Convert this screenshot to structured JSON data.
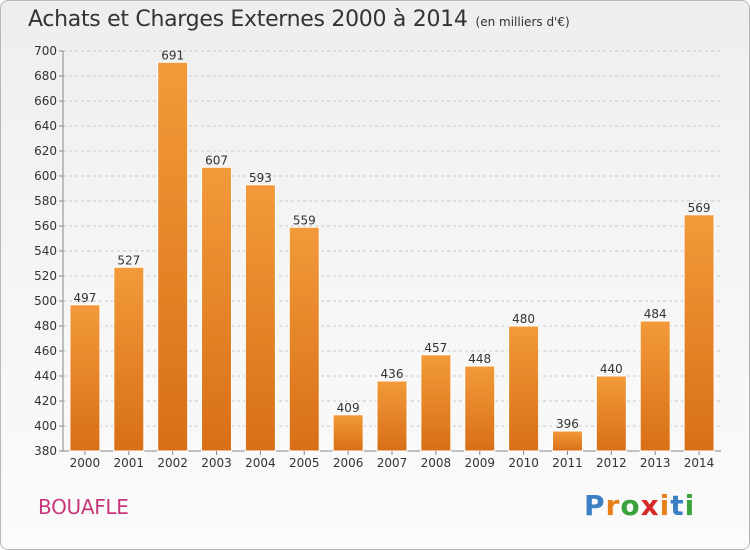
{
  "title": "Achats et Charges Externes 2000 à 2014",
  "subtitle": "(en milliers d'€)",
  "commune": "BOUAFLE",
  "brand": {
    "letters": [
      "P",
      "r",
      "o",
      "x",
      "i",
      "t",
      "i"
    ],
    "colors": [
      "#3b7fc4",
      "#e8801a",
      "#3aa23a",
      "#d42a2a",
      "#e8801a",
      "#3b7fc4",
      "#3aa23a"
    ]
  },
  "colors": {
    "bar": "#f29a3a",
    "bar_dark": "#d86f16",
    "grid": "#c9c9c9",
    "text": "#333333"
  },
  "chart_data": {
    "type": "bar",
    "categories": [
      "2000",
      "2001",
      "2002",
      "2003",
      "2004",
      "2005",
      "2006",
      "2007",
      "2008",
      "2009",
      "2010",
      "2011",
      "2012",
      "2013",
      "2014"
    ],
    "values": [
      497,
      527,
      691,
      607,
      593,
      559,
      409,
      436,
      457,
      448,
      480,
      396,
      440,
      484,
      569
    ],
    "ylim": [
      380,
      700
    ],
    "yticks": [
      380,
      400,
      420,
      440,
      460,
      480,
      500,
      520,
      540,
      560,
      580,
      600,
      620,
      640,
      660,
      680,
      700
    ],
    "grid": true,
    "xlabel": "",
    "ylabel": ""
  }
}
